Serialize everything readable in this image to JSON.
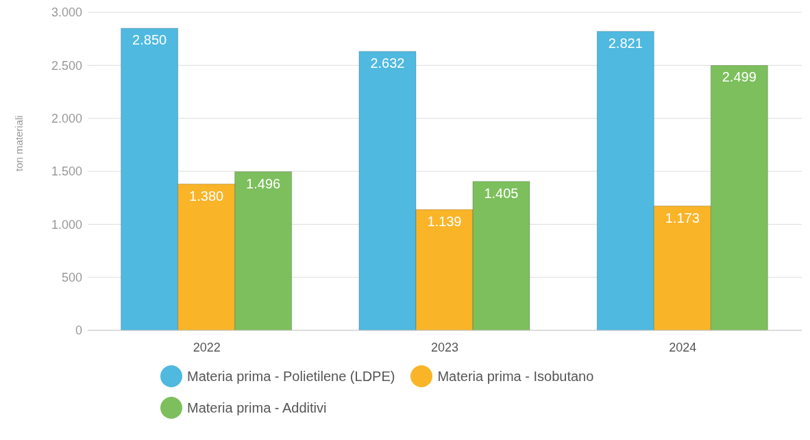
{
  "chart_data": {
    "type": "bar",
    "ylabel": "ton materiali",
    "categories": [
      "2022",
      "2023",
      "2024"
    ],
    "series": [
      {
        "name": "Materia prima - Polietilene (LDPE)",
        "color": "#4fb9e0",
        "values": [
          2850,
          2632,
          2821
        ],
        "value_labels": [
          "2.850",
          "2.632",
          "2.821"
        ]
      },
      {
        "name": "Materia prima - Isobutano",
        "color": "#f9b428",
        "values": [
          1380,
          1139,
          1173
        ],
        "value_labels": [
          "1.380",
          "1.139",
          "1.173"
        ]
      },
      {
        "name": "Materia prima - Additivi",
        "color": "#7cbf5c",
        "values": [
          1496,
          1405,
          2499
        ],
        "value_labels": [
          "1.496",
          "1.405",
          "2.499"
        ]
      }
    ],
    "ylim": [
      0,
      3000
    ],
    "yticks": [
      0,
      {
        "value": 500,
        "label": "500"
      },
      {
        "value": 1000,
        "label": "1.000"
      },
      {
        "value": 1500,
        "label": "1.500"
      },
      {
        "value": 2000,
        "label": "2.000"
      },
      {
        "value": 2500,
        "label": "2.500"
      },
      {
        "value": 3000,
        "label": "3.000"
      }
    ],
    "grid": "y",
    "legend": "bottom"
  }
}
